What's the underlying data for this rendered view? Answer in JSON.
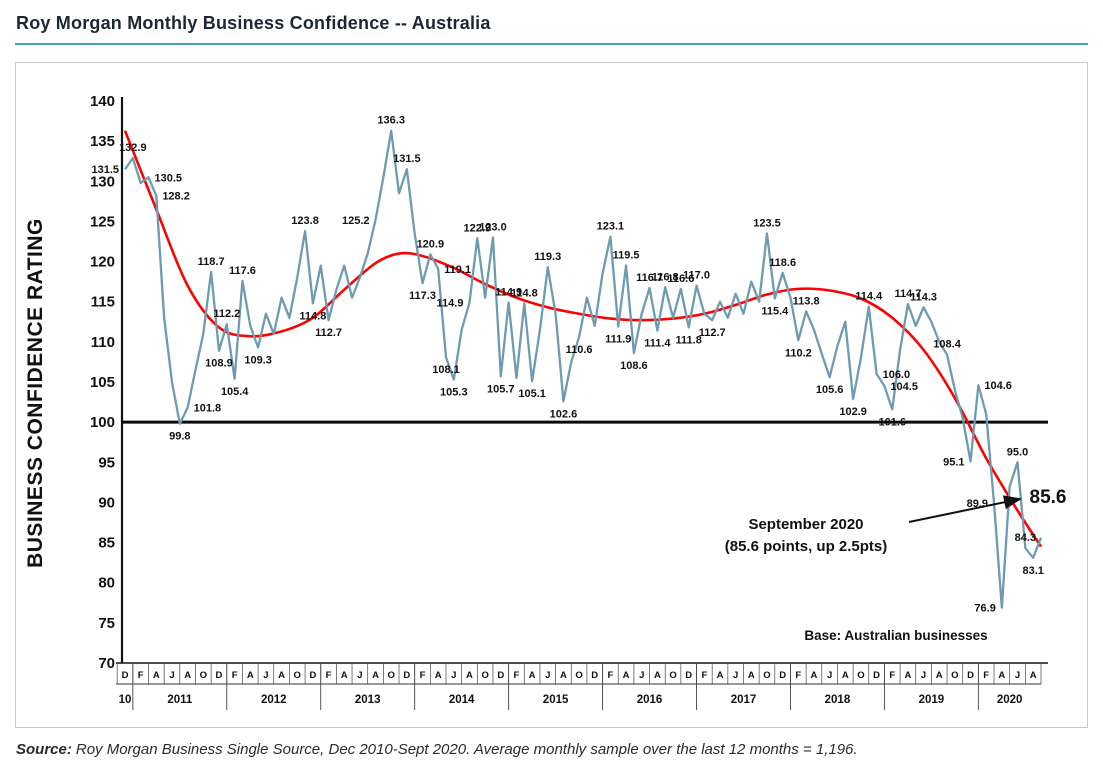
{
  "header": {
    "title": "Roy Morgan Monthly Business Confidence -- Australia",
    "underline_color": "#47a1b1"
  },
  "source": {
    "label": "Source:",
    "text": "Roy Morgan Business Single Source, Dec 2010-Sept 2020. Average monthly sample over the last 12 months = 1,196."
  },
  "annotation": {
    "line1": "September 2020",
    "line2": "(85.6 points, up 2.5pts)",
    "callout_value": "85.6"
  },
  "base_note": "Base: Australian businesses",
  "theme": {
    "line_color": "#6e9bb0",
    "point_label_color": "#4a7a94",
    "trend_color": "#ff0000",
    "reference_line_color": "#0a0a0a",
    "callout_color": "#3e7e96",
    "axis_color": "#111111"
  },
  "chart_data": {
    "type": "line",
    "title": "Roy Morgan Monthly Business Confidence -- Australia",
    "xlabel": "",
    "ylabel": "BUSINESS CONFIDENCE RATING",
    "ylim": [
      70,
      140
    ],
    "ytick_step": 5,
    "grid": false,
    "reference_line": 100,
    "x_start": "Dec 2010",
    "x_end": "Sep 2020",
    "x_month_letters": [
      "D",
      "F",
      "A",
      "J",
      "A",
      "O",
      "D",
      "F",
      "A",
      "J",
      "A",
      "O",
      "D",
      "F",
      "A",
      "J",
      "A",
      "O",
      "D",
      "F",
      "A",
      "J",
      "A",
      "O",
      "D",
      "F",
      "A",
      "J",
      "A",
      "O",
      "D",
      "F",
      "A",
      "J",
      "A",
      "O",
      "D",
      "F",
      "A",
      "J",
      "A",
      "O",
      "D",
      "F",
      "A",
      "J",
      "A",
      "O",
      "D",
      "F",
      "A",
      "J",
      "A",
      "O",
      "D",
      "F",
      "A",
      "J",
      "A"
    ],
    "years": [
      {
        "label": "10",
        "m": 0
      },
      {
        "label": "2011",
        "m": 7
      },
      {
        "label": "2012",
        "m": 19
      },
      {
        "label": "2013",
        "m": 31
      },
      {
        "label": "2014",
        "m": 43
      },
      {
        "label": "2015",
        "m": 55
      },
      {
        "label": "2016",
        "m": 67
      },
      {
        "label": "2017",
        "m": 79
      },
      {
        "label": "2018",
        "m": 91
      },
      {
        "label": "2019",
        "m": 103
      },
      {
        "label": "2020",
        "m": 113
      }
    ],
    "series": [
      {
        "name": "Monthly Business Confidence",
        "color": "#6e9bb0",
        "values": [
          131.5,
          132.9,
          129.8,
          130.5,
          128.2,
          113.0,
          105.0,
          99.8,
          101.8,
          106.5,
          111.0,
          118.7,
          108.9,
          112.2,
          105.4,
          117.6,
          112.0,
          109.3,
          113.5,
          111.0,
          115.5,
          113.0,
          118.0,
          123.8,
          114.8,
          119.5,
          112.7,
          116.5,
          119.5,
          115.5,
          118.0,
          121.0,
          125.2,
          130.5,
          136.3,
          128.5,
          131.5,
          123.5,
          117.3,
          120.9,
          119.1,
          108.1,
          105.3,
          111.5,
          114.9,
          122.9,
          115.5,
          123.0,
          105.7,
          114.9,
          105.5,
          114.8,
          105.1,
          111.5,
          119.3,
          113.5,
          102.6,
          107.5,
          110.6,
          115.5,
          112.0,
          118.5,
          123.1,
          111.9,
          119.5,
          108.6,
          113.5,
          116.7,
          111.4,
          116.8,
          113.0,
          116.6,
          111.8,
          117.0,
          113.5,
          112.7,
          115.0,
          113.0,
          116.0,
          113.5,
          117.5,
          115.0,
          123.5,
          115.4,
          118.6,
          115.5,
          110.2,
          113.8,
          111.5,
          108.5,
          105.6,
          109.5,
          112.5,
          102.9,
          108.0,
          114.4,
          106.0,
          104.5,
          101.6,
          109.0,
          114.7,
          112.0,
          114.3,
          112.5,
          110.0,
          108.4,
          104.0,
          100.5,
          95.1,
          104.6,
          101.0,
          89.9,
          76.9,
          92.0,
          95.0,
          84.3,
          83.1,
          85.6
        ]
      },
      {
        "name": "Trend (smoothed)",
        "color": "#ff0000",
        "anchors": [
          [
            0,
            136.3
          ],
          [
            4,
            126.5
          ],
          [
            8,
            117.0
          ],
          [
            12,
            111.8
          ],
          [
            16,
            110.7
          ],
          [
            20,
            111.3
          ],
          [
            24,
            113.0
          ],
          [
            28,
            116.5
          ],
          [
            32,
            119.8
          ],
          [
            35,
            121.0
          ],
          [
            38,
            120.7
          ],
          [
            42,
            119.2
          ],
          [
            46,
            117.2
          ],
          [
            50,
            115.5
          ],
          [
            54,
            114.3
          ],
          [
            58,
            113.5
          ],
          [
            62,
            112.9
          ],
          [
            66,
            112.7
          ],
          [
            70,
            112.9
          ],
          [
            74,
            113.5
          ],
          [
            78,
            114.6
          ],
          [
            82,
            115.9
          ],
          [
            86,
            116.6
          ],
          [
            90,
            116.4
          ],
          [
            94,
            115.4
          ],
          [
            98,
            113.0
          ],
          [
            102,
            109.0
          ],
          [
            106,
            103.0
          ],
          [
            110,
            95.5
          ],
          [
            114,
            89.0
          ],
          [
            117,
            84.5
          ]
        ]
      }
    ],
    "point_labels": [
      {
        "i": 0,
        "v": "131.5",
        "pos": "left"
      },
      {
        "i": 1,
        "v": "132.9",
        "pos": "above"
      },
      {
        "i": 3,
        "v": "130.5",
        "pos": "right"
      },
      {
        "i": 4,
        "v": "128.2",
        "pos": "right"
      },
      {
        "i": 7,
        "v": "99.8",
        "pos": "below"
      },
      {
        "i": 8,
        "v": "101.8",
        "pos": "right"
      },
      {
        "i": 11,
        "v": "118.7",
        "pos": "above"
      },
      {
        "i": 12,
        "v": "108.9",
        "pos": "below"
      },
      {
        "i": 13,
        "v": "112.2",
        "pos": "above"
      },
      {
        "i": 14,
        "v": "105.4",
        "pos": "below"
      },
      {
        "i": 15,
        "v": "117.6",
        "pos": "above"
      },
      {
        "i": 17,
        "v": "109.3",
        "pos": "below"
      },
      {
        "i": 23,
        "v": "123.8",
        "pos": "above"
      },
      {
        "i": 24,
        "v": "114.8",
        "pos": "below"
      },
      {
        "i": 26,
        "v": "112.7",
        "pos": "below"
      },
      {
        "i": 32,
        "v": "125.2",
        "pos": "left"
      },
      {
        "i": 34,
        "v": "136.3",
        "pos": "above"
      },
      {
        "i": 36,
        "v": "131.5",
        "pos": "above"
      },
      {
        "i": 38,
        "v": "117.3",
        "pos": "below"
      },
      {
        "i": 39,
        "v": "120.9",
        "pos": "above"
      },
      {
        "i": 40,
        "v": "119.1",
        "pos": "right"
      },
      {
        "i": 41,
        "v": "108.1",
        "pos": "below"
      },
      {
        "i": 42,
        "v": "105.3",
        "pos": "below"
      },
      {
        "i": 44,
        "v": "114.9",
        "pos": "left"
      },
      {
        "i": 45,
        "v": "122.9",
        "pos": "above"
      },
      {
        "i": 47,
        "v": "123.0",
        "pos": "above"
      },
      {
        "i": 48,
        "v": "105.7",
        "pos": "below"
      },
      {
        "i": 49,
        "v": "114.9",
        "pos": "above"
      },
      {
        "i": 51,
        "v": "114.8",
        "pos": "above"
      },
      {
        "i": 52,
        "v": "105.1",
        "pos": "below"
      },
      {
        "i": 54,
        "v": "119.3",
        "pos": "above"
      },
      {
        "i": 56,
        "v": "102.6",
        "pos": "below"
      },
      {
        "i": 58,
        "v": "110.6",
        "pos": "below"
      },
      {
        "i": 62,
        "v": "123.1",
        "pos": "above"
      },
      {
        "i": 63,
        "v": "111.9",
        "pos": "below"
      },
      {
        "i": 64,
        "v": "119.5",
        "pos": "above"
      },
      {
        "i": 65,
        "v": "108.6",
        "pos": "below"
      },
      {
        "i": 67,
        "v": "116.7",
        "pos": "above"
      },
      {
        "i": 68,
        "v": "111.4",
        "pos": "below"
      },
      {
        "i": 69,
        "v": "116.8",
        "pos": "above"
      },
      {
        "i": 71,
        "v": "116.6",
        "pos": "above"
      },
      {
        "i": 72,
        "v": "111.8",
        "pos": "below"
      },
      {
        "i": 73,
        "v": "117.0",
        "pos": "above"
      },
      {
        "i": 75,
        "v": "112.7",
        "pos": "below"
      },
      {
        "i": 82,
        "v": "123.5",
        "pos": "above"
      },
      {
        "i": 83,
        "v": "115.4",
        "pos": "below"
      },
      {
        "i": 84,
        "v": "118.6",
        "pos": "above"
      },
      {
        "i": 86,
        "v": "110.2",
        "pos": "below"
      },
      {
        "i": 87,
        "v": "113.8",
        "pos": "above"
      },
      {
        "i": 90,
        "v": "105.6",
        "pos": "below"
      },
      {
        "i": 93,
        "v": "102.9",
        "pos": "below"
      },
      {
        "i": 95,
        "v": "114.4",
        "pos": "above"
      },
      {
        "i": 96,
        "v": "106.0",
        "pos": "right"
      },
      {
        "i": 97,
        "v": "104.5",
        "pos": "right"
      },
      {
        "i": 98,
        "v": "101.6",
        "pos": "below"
      },
      {
        "i": 100,
        "v": "114.7",
        "pos": "above"
      },
      {
        "i": 102,
        "v": "114.3",
        "pos": "above"
      },
      {
        "i": 105,
        "v": "108.4",
        "pos": "above"
      },
      {
        "i": 108,
        "v": "95.1",
        "pos": "left"
      },
      {
        "i": 109,
        "v": "104.6",
        "pos": "right"
      },
      {
        "i": 111,
        "v": "89.9",
        "pos": "left"
      },
      {
        "i": 112,
        "v": "76.9",
        "pos": "left"
      },
      {
        "i": 114,
        "v": "95.0",
        "pos": "above"
      },
      {
        "i": 115,
        "v": "84.3",
        "pos": "above"
      },
      {
        "i": 116,
        "v": "83.1",
        "pos": "below"
      }
    ]
  }
}
